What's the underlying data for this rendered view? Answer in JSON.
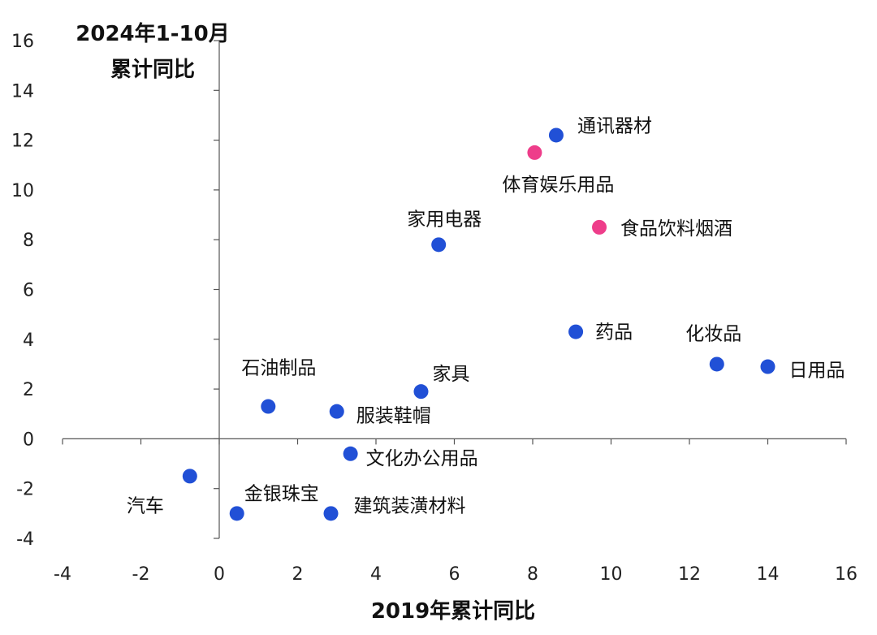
{
  "chart_data": {
    "type": "scatter",
    "ylabel_line1": "2024年1-10月",
    "ylabel_line2": "累计同比",
    "xlabel": "2019年累计同比",
    "xlim": [
      -4,
      16
    ],
    "ylim": [
      -4,
      16
    ],
    "xticks": [
      -4,
      -2,
      0,
      2,
      4,
      6,
      8,
      10,
      12,
      14,
      16
    ],
    "yticks": [
      -4,
      -2,
      0,
      2,
      4,
      6,
      8,
      10,
      12,
      14,
      16
    ],
    "colors": {
      "default": "#2150d6",
      "highlight": "#ee3d8a"
    },
    "points": [
      {
        "label": "通讯器材",
        "x": 8.6,
        "y": 12.2,
        "highlight": false
      },
      {
        "label": "体育娱乐用品",
        "x": 8.05,
        "y": 11.5,
        "highlight": true
      },
      {
        "label": "食品饮料烟酒",
        "x": 9.7,
        "y": 8.5,
        "highlight": true
      },
      {
        "label": "家用电器",
        "x": 5.6,
        "y": 7.8,
        "highlight": false
      },
      {
        "label": "药品",
        "x": 9.1,
        "y": 4.3,
        "highlight": false
      },
      {
        "label": "化妆品",
        "x": 12.7,
        "y": 3.0,
        "highlight": false
      },
      {
        "label": "日用品",
        "x": 14.0,
        "y": 2.9,
        "highlight": false
      },
      {
        "label": "家具",
        "x": 5.15,
        "y": 1.9,
        "highlight": false
      },
      {
        "label": "石油制品",
        "x": 1.25,
        "y": 1.3,
        "highlight": false
      },
      {
        "label": "服装鞋帽",
        "x": 3.0,
        "y": 1.1,
        "highlight": false
      },
      {
        "label": "文化办公用品",
        "x": 3.35,
        "y": -0.6,
        "highlight": false
      },
      {
        "label": "汽车",
        "x": -0.75,
        "y": -1.5,
        "highlight": false
      },
      {
        "label": "金银珠宝",
        "x": 0.45,
        "y": -3.0,
        "highlight": false
      },
      {
        "label": "建筑装潢材料",
        "x": 2.85,
        "y": -3.0,
        "highlight": false
      }
    ]
  }
}
